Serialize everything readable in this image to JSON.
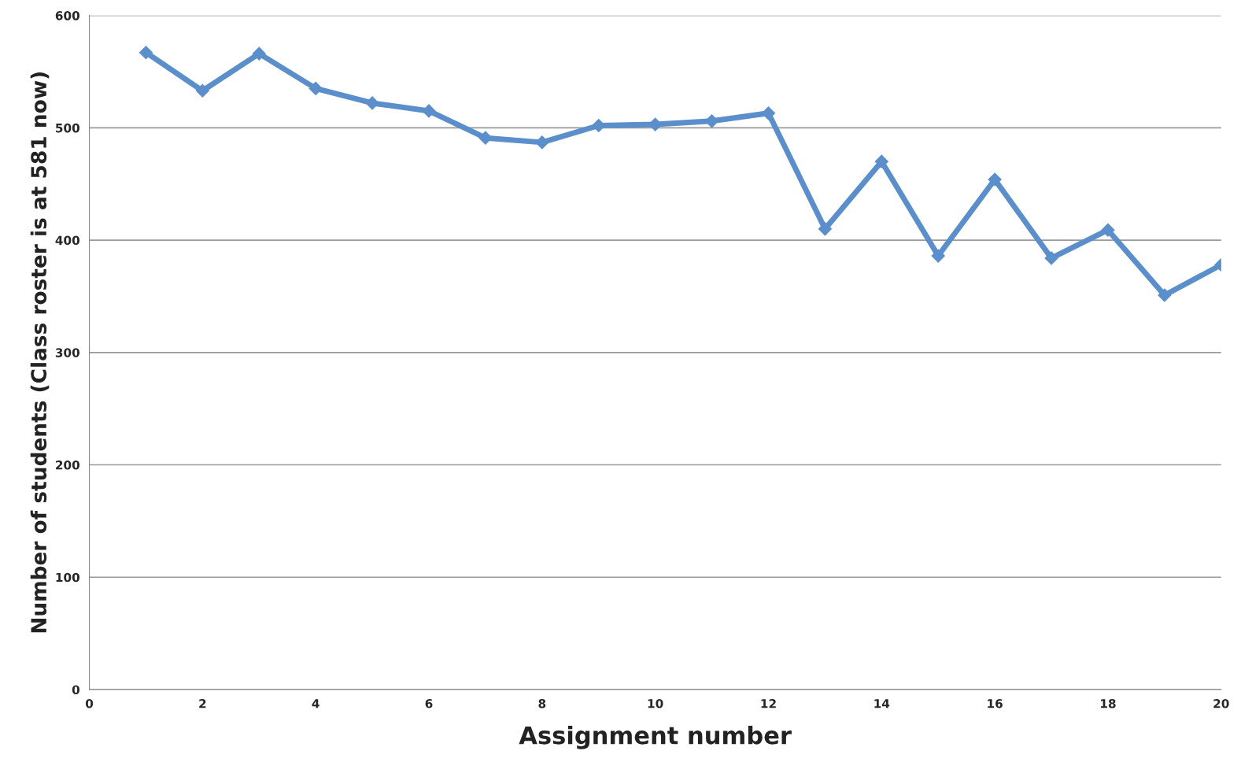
{
  "chart_data": {
    "type": "line",
    "xlabel": "Assignment number",
    "ylabel": "Number of students (Class roster is at 581 now)",
    "x": [
      1,
      2,
      3,
      4,
      5,
      6,
      7,
      8,
      9,
      10,
      11,
      12,
      13,
      14,
      15,
      16,
      17,
      18,
      19,
      20
    ],
    "series": [
      {
        "color": "#5b8fcb",
        "values": [
          567,
          533,
          566,
          535,
          522,
          515,
          491,
          487,
          502,
          503,
          506,
          513,
          410,
          470,
          386,
          454,
          384,
          409,
          351,
          378
        ]
      }
    ],
    "xlim": [
      0,
      20
    ],
    "xticks": [
      0,
      2,
      4,
      6,
      8,
      10,
      12,
      14,
      16,
      18,
      20
    ],
    "ylim": [
      0,
      600
    ],
    "yticks": [
      0,
      100,
      200,
      300,
      400,
      500,
      600
    ],
    "grid": "y",
    "marker": "diamond",
    "line_style": "solid"
  }
}
